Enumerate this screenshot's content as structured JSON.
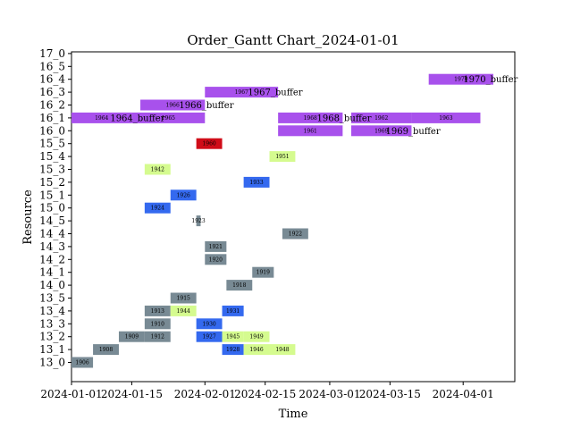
{
  "chart_data": {
    "type": "gantt",
    "title": "Order_Gantt Chart_2024-01-01",
    "xlabel": "Time",
    "ylabel": "Resource",
    "x_ticks": [
      "2024-01-01",
      "2024-01-15",
      "2024-02-01",
      "2024-02-15",
      "2024-03-01",
      "2024-03-15",
      "2024-04-01"
    ],
    "x_range": [
      "2024-01-01",
      "2024-04-13"
    ],
    "resources": [
      "13_0",
      "13_1",
      "13_2",
      "13_3",
      "13_4",
      "13_5",
      "14_0",
      "14_1",
      "14_2",
      "14_3",
      "14_4",
      "14_5",
      "15_0",
      "15_1",
      "15_2",
      "15_3",
      "15_4",
      "15_5",
      "16_0",
      "16_1",
      "16_2",
      "16_3",
      "16_4",
      "16_5",
      "17_0"
    ],
    "colors": {
      "grey": "#788a94",
      "blue": "#3469ef",
      "lightgreen": "#d5fb8f",
      "purple": "#a851ec",
      "red": "#d00c18"
    },
    "tasks": [
      {
        "resource": "13_0",
        "label": "1906",
        "start": "2024-01-01",
        "end": "2024-01-06",
        "color": "grey"
      },
      {
        "resource": "13_1",
        "label": "1908",
        "start": "2024-01-06",
        "end": "2024-01-12",
        "color": "grey"
      },
      {
        "resource": "13_1",
        "label": "1928",
        "start": "2024-02-05",
        "end": "2024-02-10",
        "color": "blue"
      },
      {
        "resource": "13_1",
        "label": "1946",
        "start": "2024-02-10",
        "end": "2024-02-16",
        "color": "lightgreen"
      },
      {
        "resource": "13_1",
        "label": "1948",
        "start": "2024-02-16",
        "end": "2024-02-22",
        "color": "lightgreen"
      },
      {
        "resource": "13_2",
        "label": "1909",
        "start": "2024-01-12",
        "end": "2024-01-18",
        "color": "grey"
      },
      {
        "resource": "13_2",
        "label": "1912",
        "start": "2024-01-18",
        "end": "2024-01-24",
        "color": "grey"
      },
      {
        "resource": "13_2",
        "label": "1927",
        "start": "2024-01-30",
        "end": "2024-02-05",
        "color": "blue"
      },
      {
        "resource": "13_2",
        "label": "1945",
        "start": "2024-02-05",
        "end": "2024-02-10",
        "color": "lightgreen"
      },
      {
        "resource": "13_2",
        "label": "1949",
        "start": "2024-02-10",
        "end": "2024-02-16",
        "color": "lightgreen"
      },
      {
        "resource": "13_3",
        "label": "1910",
        "start": "2024-01-18",
        "end": "2024-01-24",
        "color": "grey"
      },
      {
        "resource": "13_3",
        "label": "1930",
        "start": "2024-01-30",
        "end": "2024-02-05",
        "color": "blue"
      },
      {
        "resource": "13_4",
        "label": "1913",
        "start": "2024-01-18",
        "end": "2024-01-24",
        "color": "grey"
      },
      {
        "resource": "13_4",
        "label": "1944",
        "start": "2024-01-24",
        "end": "2024-01-30",
        "color": "lightgreen"
      },
      {
        "resource": "13_4",
        "label": "1931",
        "start": "2024-02-05",
        "end": "2024-02-10",
        "color": "blue"
      },
      {
        "resource": "13_5",
        "label": "1915",
        "start": "2024-01-24",
        "end": "2024-01-30",
        "color": "grey"
      },
      {
        "resource": "14_0",
        "label": "1918",
        "start": "2024-02-06",
        "end": "2024-02-12",
        "color": "grey"
      },
      {
        "resource": "14_1",
        "label": "1919",
        "start": "2024-02-12",
        "end": "2024-02-17",
        "color": "grey"
      },
      {
        "resource": "14_2",
        "label": "1920",
        "start": "2024-02-01",
        "end": "2024-02-06",
        "color": "grey"
      },
      {
        "resource": "14_3",
        "label": "1921",
        "start": "2024-02-01",
        "end": "2024-02-06",
        "color": "grey"
      },
      {
        "resource": "14_4",
        "label": "1922",
        "start": "2024-02-19",
        "end": "2024-02-25",
        "color": "grey"
      },
      {
        "resource": "14_5",
        "label": "1923",
        "start": "2024-01-30",
        "end": "2024-01-31",
        "color": "grey"
      },
      {
        "resource": "15_0",
        "label": "1924",
        "start": "2024-01-18",
        "end": "2024-01-24",
        "color": "blue"
      },
      {
        "resource": "15_1",
        "label": "1926",
        "start": "2024-01-24",
        "end": "2024-01-30",
        "color": "blue"
      },
      {
        "resource": "15_2",
        "label": "1933",
        "start": "2024-02-10",
        "end": "2024-02-16",
        "color": "blue"
      },
      {
        "resource": "15_3",
        "label": "1942",
        "start": "2024-01-18",
        "end": "2024-01-24",
        "color": "lightgreen"
      },
      {
        "resource": "15_4",
        "label": "1951",
        "start": "2024-02-16",
        "end": "2024-02-22",
        "color": "lightgreen"
      },
      {
        "resource": "15_5",
        "label": "1960",
        "start": "2024-01-30",
        "end": "2024-02-05",
        "color": "red"
      },
      {
        "resource": "16_0",
        "label": "1961",
        "start": "2024-02-18",
        "end": "2024-03-04",
        "color": "purple"
      },
      {
        "resource": "16_0",
        "label": "1969",
        "start": "2024-03-06",
        "end": "2024-03-20",
        "color": "purple"
      },
      {
        "resource": "16_0",
        "label": "_buffer",
        "start": "2024-03-20",
        "end": "2024-03-20",
        "color": "purple",
        "text_at": "end"
      },
      {
        "resource": "16_1",
        "label": "1964",
        "start": "2024-01-01",
        "end": "2024-01-15",
        "color": "purple"
      },
      {
        "resource": "16_1",
        "label": "1965",
        "start": "2024-01-15",
        "end": "2024-02-01",
        "color": "purple"
      },
      {
        "resource": "16_1",
        "label": "1968",
        "start": "2024-02-18",
        "end": "2024-03-04",
        "color": "purple"
      },
      {
        "resource": "16_1",
        "label": "1962",
        "start": "2024-03-06",
        "end": "2024-03-20",
        "color": "purple"
      },
      {
        "resource": "16_1",
        "label": "1963",
        "start": "2024-03-20",
        "end": "2024-04-05",
        "color": "purple"
      },
      {
        "resource": "16_2",
        "label": "1966",
        "start": "2024-01-17",
        "end": "2024-02-01",
        "color": "purple"
      },
      {
        "resource": "16_3",
        "label": "1967",
        "start": "2024-02-01",
        "end": "2024-02-18",
        "color": "purple"
      },
      {
        "resource": "16_4",
        "label": "1970",
        "start": "2024-03-24",
        "end": "2024-04-08",
        "color": "purple"
      }
    ],
    "annotations": [
      {
        "resource": "16_1",
        "text": "1964_buffer",
        "at": "2024-01-10"
      },
      {
        "resource": "16_2",
        "text": "1966_buffer",
        "at": "2024-01-26"
      },
      {
        "resource": "16_3",
        "text": "1967_buffer",
        "at": "2024-02-11"
      },
      {
        "resource": "16_1",
        "text": "1968_buffer",
        "at": "2024-02-27"
      },
      {
        "resource": "16_0",
        "text": "1969_buffer",
        "at": "2024-03-14"
      },
      {
        "resource": "16_4",
        "text": "1970_buffer",
        "at": "2024-04-01"
      }
    ]
  }
}
